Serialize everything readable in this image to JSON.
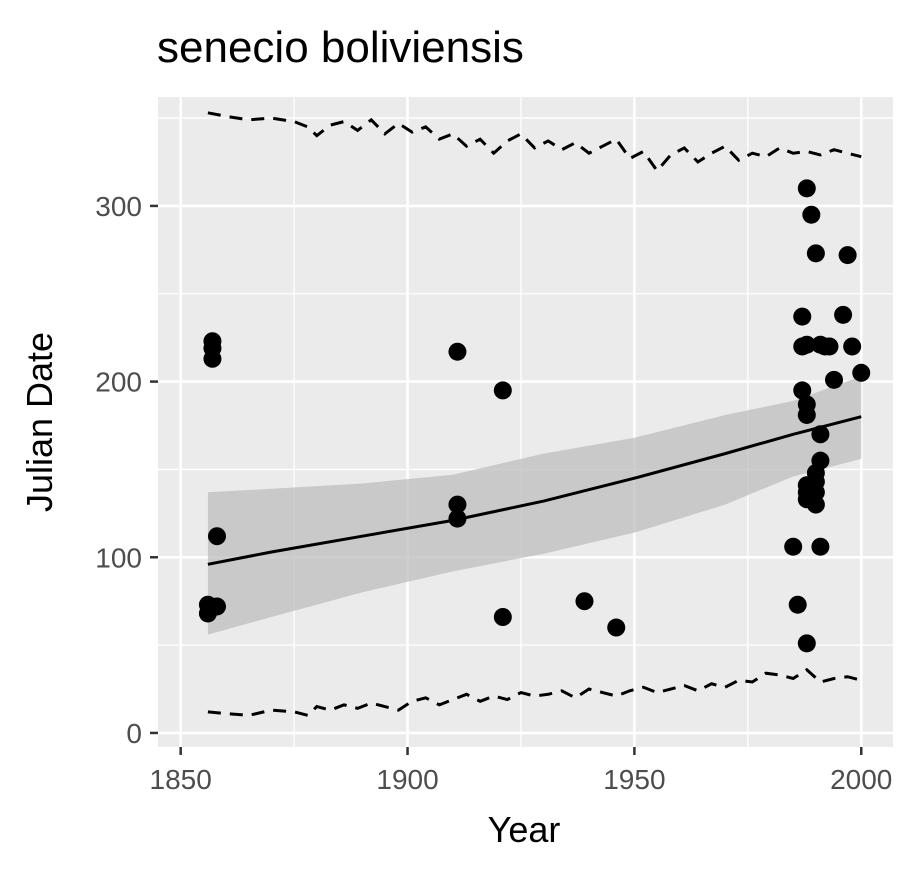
{
  "chart_data": {
    "type": "scatter",
    "title": "senecio boliviensis",
    "xlabel": "Year",
    "ylabel": "Julian Date",
    "xlim": [
      1845,
      2007
    ],
    "ylim": [
      -8,
      362
    ],
    "x_ticks": [
      1850,
      1900,
      1950,
      2000
    ],
    "y_ticks": [
      0,
      100,
      200,
      300
    ],
    "grid": true,
    "legend": "none",
    "colors": {
      "panel": "#ebebeb",
      "grid": "#ffffff",
      "points": "#000000",
      "ribbon": "#bdbdbd"
    },
    "points": {
      "x": [
        1856,
        1856,
        1857,
        1857,
        1857,
        1858,
        1858,
        1911,
        1911,
        1911,
        1921,
        1921,
        1939,
        1946,
        1985,
        1986,
        1987,
        1987,
        1987,
        1988,
        1988,
        1988,
        1988,
        1988,
        1988,
        1988,
        1988,
        1989,
        1989,
        1990,
        1990,
        1990,
        1990,
        1990,
        1991,
        1991,
        1991,
        1991,
        1992,
        1993,
        1994,
        1996,
        1997,
        1998,
        2000
      ],
      "y": [
        73,
        68,
        223,
        219,
        213,
        112,
        72,
        217,
        130,
        122,
        195,
        66,
        75,
        60,
        106,
        73,
        237,
        220,
        195,
        310,
        221,
        187,
        181,
        141,
        137,
        133,
        51,
        139,
        295,
        273,
        148,
        143,
        137,
        130,
        221,
        170,
        155,
        106,
        220,
        220,
        201,
        238,
        272,
        220,
        205
      ]
    },
    "trend": {
      "x": [
        1856,
        1870,
        1890,
        1910,
        1930,
        1950,
        1970,
        1985,
        2000
      ],
      "y": [
        96,
        103,
        112,
        121,
        132,
        145,
        159,
        170,
        180
      ],
      "lower": [
        56,
        66,
        80,
        92,
        102,
        114,
        130,
        146,
        156
      ],
      "upper": [
        137,
        139,
        142,
        147,
        159,
        168,
        181,
        189,
        203
      ]
    },
    "upper_dashed": {
      "x": [
        1856,
        1860,
        1865,
        1870,
        1875,
        1878,
        1880,
        1883,
        1886,
        1889,
        1892,
        1895,
        1898,
        1901,
        1904,
        1907,
        1910,
        1913,
        1916,
        1919,
        1922,
        1925,
        1928,
        1931,
        1934,
        1937,
        1940,
        1943,
        1946,
        1949,
        1952,
        1955,
        1958,
        1961,
        1964,
        1967,
        1970,
        1973,
        1976,
        1979,
        1982,
        1985,
        1988,
        1991,
        1994,
        1997,
        2000
      ],
      "y": [
        353,
        351,
        349,
        350,
        348,
        345,
        340,
        346,
        348,
        343,
        349,
        341,
        347,
        342,
        345,
        338,
        341,
        334,
        338,
        330,
        337,
        341,
        333,
        337,
        332,
        336,
        330,
        334,
        338,
        327,
        331,
        320,
        329,
        333,
        325,
        330,
        334,
        326,
        330,
        328,
        333,
        330,
        331,
        329,
        332,
        330,
        328
      ]
    },
    "lower_dashed": {
      "x": [
        1856,
        1860,
        1865,
        1870,
        1875,
        1878,
        1880,
        1883,
        1886,
        1889,
        1892,
        1895,
        1898,
        1901,
        1904,
        1907,
        1910,
        1913,
        1916,
        1919,
        1922,
        1925,
        1928,
        1931,
        1934,
        1937,
        1940,
        1943,
        1946,
        1949,
        1952,
        1955,
        1958,
        1961,
        1964,
        1967,
        1970,
        1973,
        1976,
        1979,
        1982,
        1985,
        1988,
        1991,
        1994,
        1997,
        2000
      ],
      "y": [
        12,
        11,
        10,
        13,
        12,
        10,
        15,
        13,
        16,
        14,
        17,
        15,
        13,
        18,
        20,
        16,
        19,
        22,
        18,
        21,
        19,
        23,
        21,
        22,
        24,
        20,
        25,
        23,
        21,
        24,
        26,
        23,
        25,
        27,
        24,
        28,
        26,
        30,
        29,
        34,
        33,
        31,
        36,
        29,
        31,
        32,
        30
      ]
    }
  }
}
